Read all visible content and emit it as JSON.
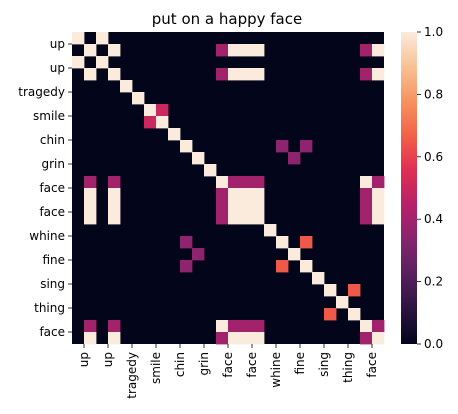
{
  "chart_data": {
    "type": "heatmap",
    "title": "put on a happy face",
    "tokens": [
      "up",
      "up",
      "up",
      "up",
      "tragedy",
      "tragedy",
      "smile",
      "smile",
      "chin",
      "chin",
      "grin",
      "grin",
      "face",
      "face",
      "face",
      "face",
      "whine",
      "whine",
      "fine",
      "fine",
      "sing",
      "sing",
      "thing",
      "thing",
      "face",
      "face"
    ],
    "xticklabels": [
      "up",
      "up",
      "tragedy",
      "smile",
      "chin",
      "grin",
      "face",
      "face",
      "whine",
      "fine",
      "sing",
      "thing",
      "face"
    ],
    "yticklabels": [
      "up",
      "up",
      "tragedy",
      "smile",
      "chin",
      "grin",
      "face",
      "face",
      "whine",
      "fine",
      "sing",
      "thing",
      "face"
    ],
    "colorbar": {
      "range": [
        0.0,
        1.0
      ],
      "ticks": [
        "0.0",
        "0.2",
        "0.4",
        "0.6",
        "0.8",
        "1.0"
      ]
    },
    "cells": [
      {
        "r": 0,
        "c": 0,
        "v": 1.0
      },
      {
        "r": 0,
        "c": 2,
        "v": 1.0
      },
      {
        "r": 1,
        "c": 1,
        "v": 1.0
      },
      {
        "r": 1,
        "c": 3,
        "v": 1.0
      },
      {
        "r": 1,
        "c": 12,
        "v": 0.4
      },
      {
        "r": 1,
        "c": 13,
        "v": 1.0
      },
      {
        "r": 1,
        "c": 14,
        "v": 1.0
      },
      {
        "r": 1,
        "c": 15,
        "v": 1.0
      },
      {
        "r": 1,
        "c": 24,
        "v": 0.4
      },
      {
        "r": 1,
        "c": 25,
        "v": 1.0
      },
      {
        "r": 2,
        "c": 0,
        "v": 1.0
      },
      {
        "r": 2,
        "c": 2,
        "v": 1.0
      },
      {
        "r": 3,
        "c": 1,
        "v": 1.0
      },
      {
        "r": 3,
        "c": 3,
        "v": 1.0
      },
      {
        "r": 3,
        "c": 12,
        "v": 0.4
      },
      {
        "r": 3,
        "c": 13,
        "v": 1.0
      },
      {
        "r": 3,
        "c": 14,
        "v": 1.0
      },
      {
        "r": 3,
        "c": 15,
        "v": 1.0
      },
      {
        "r": 3,
        "c": 24,
        "v": 0.4
      },
      {
        "r": 3,
        "c": 25,
        "v": 1.0
      },
      {
        "r": 4,
        "c": 4,
        "v": 1.0
      },
      {
        "r": 5,
        "c": 5,
        "v": 1.0
      },
      {
        "r": 6,
        "c": 6,
        "v": 1.0
      },
      {
        "r": 6,
        "c": 7,
        "v": 0.5
      },
      {
        "r": 7,
        "c": 6,
        "v": 0.5
      },
      {
        "r": 7,
        "c": 7,
        "v": 1.0
      },
      {
        "r": 8,
        "c": 8,
        "v": 1.0
      },
      {
        "r": 9,
        "c": 9,
        "v": 1.0
      },
      {
        "r": 9,
        "c": 17,
        "v": 0.35
      },
      {
        "r": 9,
        "c": 19,
        "v": 0.35
      },
      {
        "r": 10,
        "c": 10,
        "v": 1.0
      },
      {
        "r": 10,
        "c": 18,
        "v": 0.35
      },
      {
        "r": 11,
        "c": 11,
        "v": 1.0
      },
      {
        "r": 12,
        "c": 1,
        "v": 0.4
      },
      {
        "r": 12,
        "c": 3,
        "v": 0.4
      },
      {
        "r": 12,
        "c": 12,
        "v": 1.0
      },
      {
        "r": 12,
        "c": 13,
        "v": 0.4
      },
      {
        "r": 12,
        "c": 14,
        "v": 0.4
      },
      {
        "r": 12,
        "c": 15,
        "v": 0.4
      },
      {
        "r": 12,
        "c": 24,
        "v": 1.0
      },
      {
        "r": 12,
        "c": 25,
        "v": 0.4
      },
      {
        "r": 13,
        "c": 1,
        "v": 1.0
      },
      {
        "r": 13,
        "c": 3,
        "v": 1.0
      },
      {
        "r": 13,
        "c": 12,
        "v": 0.4
      },
      {
        "r": 13,
        "c": 13,
        "v": 1.0
      },
      {
        "r": 13,
        "c": 14,
        "v": 1.0
      },
      {
        "r": 13,
        "c": 15,
        "v": 1.0
      },
      {
        "r": 13,
        "c": 24,
        "v": 0.4
      },
      {
        "r": 13,
        "c": 25,
        "v": 1.0
      },
      {
        "r": 14,
        "c": 1,
        "v": 1.0
      },
      {
        "r": 14,
        "c": 3,
        "v": 1.0
      },
      {
        "r": 14,
        "c": 12,
        "v": 0.4
      },
      {
        "r": 14,
        "c": 13,
        "v": 1.0
      },
      {
        "r": 14,
        "c": 14,
        "v": 1.0
      },
      {
        "r": 14,
        "c": 15,
        "v": 1.0
      },
      {
        "r": 14,
        "c": 24,
        "v": 0.4
      },
      {
        "r": 14,
        "c": 25,
        "v": 1.0
      },
      {
        "r": 15,
        "c": 1,
        "v": 1.0
      },
      {
        "r": 15,
        "c": 3,
        "v": 1.0
      },
      {
        "r": 15,
        "c": 12,
        "v": 0.4
      },
      {
        "r": 15,
        "c": 13,
        "v": 1.0
      },
      {
        "r": 15,
        "c": 14,
        "v": 1.0
      },
      {
        "r": 15,
        "c": 15,
        "v": 1.0
      },
      {
        "r": 15,
        "c": 24,
        "v": 0.4
      },
      {
        "r": 15,
        "c": 25,
        "v": 1.0
      },
      {
        "r": 16,
        "c": 16,
        "v": 1.0
      },
      {
        "r": 17,
        "c": 9,
        "v": 0.35
      },
      {
        "r": 17,
        "c": 17,
        "v": 1.0
      },
      {
        "r": 17,
        "c": 19,
        "v": 0.65
      },
      {
        "r": 18,
        "c": 10,
        "v": 0.35
      },
      {
        "r": 18,
        "c": 18,
        "v": 1.0
      },
      {
        "r": 19,
        "c": 9,
        "v": 0.35
      },
      {
        "r": 19,
        "c": 17,
        "v": 0.65
      },
      {
        "r": 19,
        "c": 19,
        "v": 1.0
      },
      {
        "r": 20,
        "c": 20,
        "v": 1.0
      },
      {
        "r": 21,
        "c": 21,
        "v": 1.0
      },
      {
        "r": 21,
        "c": 23,
        "v": 0.65
      },
      {
        "r": 22,
        "c": 22,
        "v": 1.0
      },
      {
        "r": 23,
        "c": 21,
        "v": 0.65
      },
      {
        "r": 23,
        "c": 23,
        "v": 1.0
      },
      {
        "r": 24,
        "c": 1,
        "v": 0.4
      },
      {
        "r": 24,
        "c": 3,
        "v": 0.4
      },
      {
        "r": 24,
        "c": 12,
        "v": 1.0
      },
      {
        "r": 24,
        "c": 13,
        "v": 0.4
      },
      {
        "r": 24,
        "c": 14,
        "v": 0.4
      },
      {
        "r": 24,
        "c": 15,
        "v": 0.4
      },
      {
        "r": 24,
        "c": 24,
        "v": 1.0
      },
      {
        "r": 24,
        "c": 25,
        "v": 0.4
      },
      {
        "r": 25,
        "c": 1,
        "v": 1.0
      },
      {
        "r": 25,
        "c": 3,
        "v": 1.0
      },
      {
        "r": 25,
        "c": 12,
        "v": 0.4
      },
      {
        "r": 25,
        "c": 13,
        "v": 1.0
      },
      {
        "r": 25,
        "c": 14,
        "v": 1.0
      },
      {
        "r": 25,
        "c": 15,
        "v": 1.0
      },
      {
        "r": 25,
        "c": 24,
        "v": 0.4
      },
      {
        "r": 25,
        "c": 25,
        "v": 1.0
      }
    ],
    "grid": false,
    "colormap": "rocket",
    "colors": [
      "#03051a",
      "#2b1340",
      "#561f5e",
      "#86246e",
      "#b6216a",
      "#df2e53",
      "#f26148",
      "#f6935f",
      "#f8c195",
      "#faebdd"
    ]
  }
}
